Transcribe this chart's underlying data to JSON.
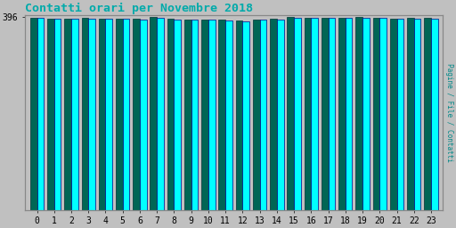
{
  "title": "Contatti orari per Novembre 2018",
  "title_color": "#00AAAA",
  "background_color": "#C0C0C0",
  "plot_bg_color": "#C0C0C0",
  "ylabel_right": "Pagine / File / Contatti",
  "ylim": [
    0,
    400
  ],
  "yticks": [
    396
  ],
  "hours": [
    0,
    1,
    2,
    3,
    4,
    5,
    6,
    7,
    8,
    9,
    10,
    11,
    12,
    13,
    14,
    15,
    16,
    17,
    18,
    19,
    20,
    21,
    22,
    23
  ],
  "bar1_color": "#00FFFF",
  "bar1_edge": "#000088",
  "bar2_color": "#006655",
  "bar2_edge": "#003333",
  "bar1_values": [
    395,
    392,
    392,
    393,
    393,
    392,
    391,
    394,
    391,
    390,
    390,
    389,
    388,
    390,
    391,
    395,
    394,
    394,
    394,
    394,
    395,
    392,
    393,
    393
  ],
  "bar2_values": [
    394,
    393,
    393,
    394,
    393,
    393,
    392,
    397,
    392,
    391,
    391,
    390,
    389,
    391,
    392,
    396,
    395,
    395,
    395,
    396,
    395,
    393,
    394,
    394
  ]
}
